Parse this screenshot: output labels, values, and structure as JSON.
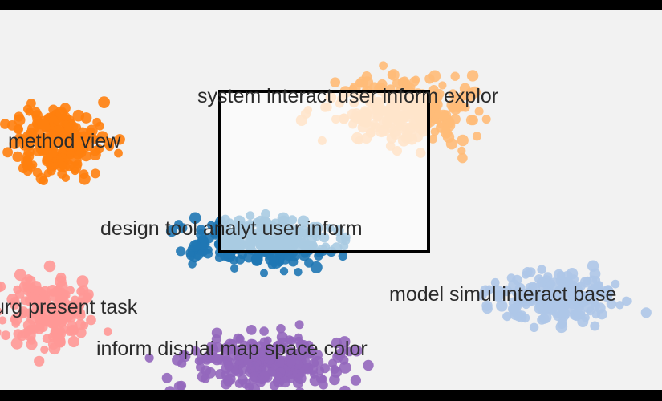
{
  "view": {
    "background": "#f2f2f2",
    "frame_color": "#000000",
    "selection": {
      "border_color": "#000000",
      "fill": "rgba(255,255,255,0.62)"
    }
  },
  "clusters": [
    {
      "id": "orange-dark",
      "label": "method view",
      "color": "#ff7f0e"
    },
    {
      "id": "orange-light",
      "label": "system interact user inform explor",
      "color": "#ffbb78"
    },
    {
      "id": "blue-dark",
      "label": "design tool analyt user inform",
      "color": "#1f77b4"
    },
    {
      "id": "blue-light",
      "label": "model simul interact base",
      "color": "#aec7e8"
    },
    {
      "id": "pink",
      "label": "urg present task",
      "color": "#ff9896"
    },
    {
      "id": "purple",
      "label": "inform displai map space color",
      "color": "#9467bd"
    }
  ]
}
